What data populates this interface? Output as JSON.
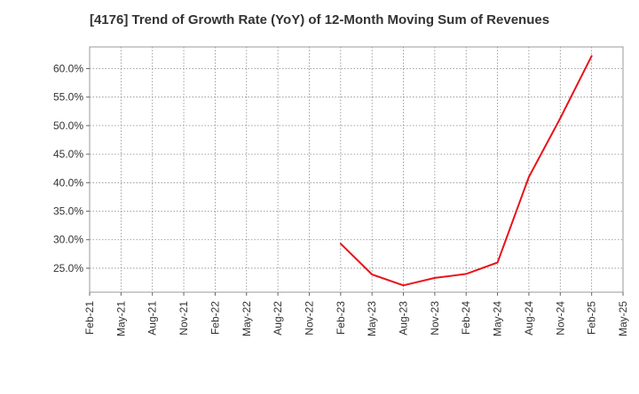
{
  "chart_data": {
    "type": "line",
    "title": "[4176]  Trend of Growth Rate (YoY) of 12-Month Moving Sum of Revenues",
    "xlabel": "",
    "ylabel": "",
    "x_ticks": [
      "Feb-21",
      "May-21",
      "Aug-21",
      "Nov-21",
      "Feb-22",
      "May-22",
      "Aug-22",
      "Nov-22",
      "Feb-23",
      "May-23",
      "Aug-23",
      "Nov-23",
      "Feb-24",
      "May-24",
      "Aug-24",
      "Nov-24",
      "Feb-25",
      "May-25"
    ],
    "y_ticks": [
      "25.0%",
      "30.0%",
      "35.0%",
      "40.0%",
      "45.0%",
      "50.0%",
      "55.0%",
      "60.0%"
    ],
    "y_tick_values": [
      25,
      30,
      35,
      40,
      45,
      50,
      55,
      60
    ],
    "xlim": [
      "Feb-21",
      "May-25"
    ],
    "ylim": [
      20.8,
      63.8
    ],
    "grid": true,
    "series": [
      {
        "color": "#e8141a",
        "x": [
          "Feb-23",
          "May-23",
          "Aug-23",
          "Nov-23",
          "Feb-24",
          "May-24",
          "Aug-24",
          "Nov-24",
          "Feb-25"
        ],
        "values": [
          29.3,
          23.9,
          22.0,
          23.3,
          24.0,
          26.0,
          41.0,
          51.3,
          62.2
        ]
      }
    ]
  }
}
